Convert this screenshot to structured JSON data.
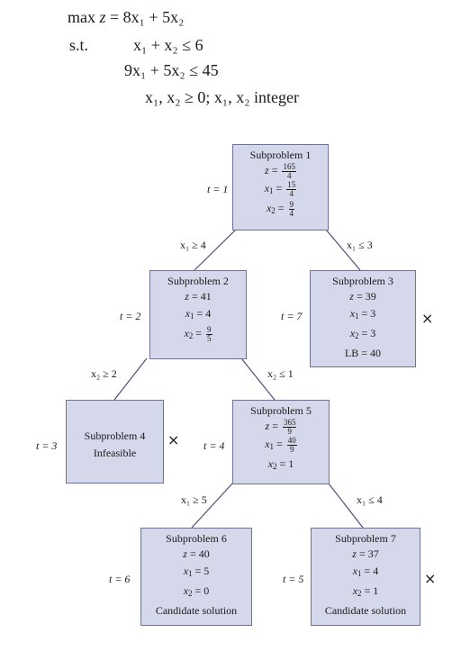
{
  "problem": {
    "objective_prefix": "max",
    "objective_var": "z",
    "objective_rhs": "= 8x₁ + 5x₂",
    "st_label": "s.t.",
    "constraint1": "x₁ +  x₂ ≤ 6",
    "constraint2": "9x₁ + 5x₂ ≤ 45",
    "constraint3": "x₁, x₂ ≥ 0; x₁, x₂ integer"
  },
  "nodes": [
    {
      "id": "sp1",
      "title": "Subproblem 1",
      "z": "165/4",
      "x1": "15/4",
      "x2": "9/4",
      "t": "t = 1"
    },
    {
      "id": "sp2",
      "title": "Subproblem 2",
      "z": "41",
      "x1": "4",
      "x2": "9/5",
      "t": "t = 2"
    },
    {
      "id": "sp3",
      "title": "Subproblem 3",
      "z": "39",
      "x1": "3",
      "x2": "3",
      "lb": "LB = 40",
      "t": "t = 7",
      "pruned": true
    },
    {
      "id": "sp4",
      "title": "Subproblem 4",
      "status": "Infeasible",
      "t": "t = 3",
      "pruned": true
    },
    {
      "id": "sp5",
      "title": "Subproblem 5",
      "z": "365/9",
      "x1": "40/9",
      "x2": "1",
      "t": "t = 4"
    },
    {
      "id": "sp6",
      "title": "Subproblem 6",
      "z": "40",
      "x1": "5",
      "x2": "0",
      "status": "Candidate solution",
      "t": "t = 6"
    },
    {
      "id": "sp7",
      "title": "Subproblem 7",
      "z": "37",
      "x1": "4",
      "x2": "1",
      "status": "Candidate solution",
      "t": "t = 5",
      "pruned": true
    }
  ],
  "edges": [
    {
      "from": "sp1",
      "to": "sp2",
      "label": "x₁ ≥ 4"
    },
    {
      "from": "sp1",
      "to": "sp3",
      "label": "x₁ ≤ 3"
    },
    {
      "from": "sp2",
      "to": "sp4",
      "label": "x₂ ≥ 2"
    },
    {
      "from": "sp2",
      "to": "sp5",
      "label": "x₂ ≤ 1"
    },
    {
      "from": "sp5",
      "to": "sp6",
      "label": "x₁ ≥ 5"
    },
    {
      "from": "sp5",
      "to": "sp7",
      "label": "x₁ ≤ 4"
    }
  ],
  "pruned_mark": "×",
  "colors": {
    "node_fill": "#d5d8ea",
    "node_border": "#6f7390",
    "line": "#4a4f78"
  }
}
